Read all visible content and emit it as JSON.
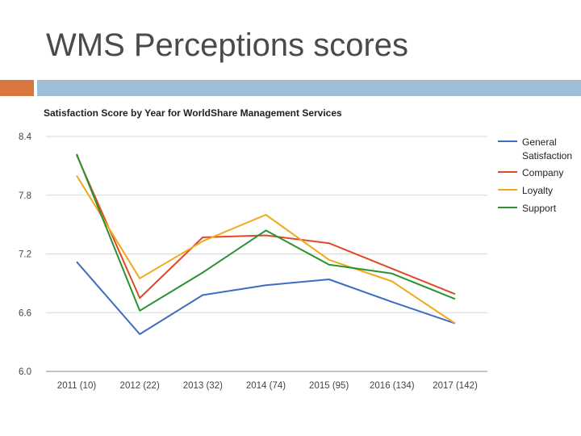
{
  "slide": {
    "title": "WMS Perceptions scores",
    "accent_colors": {
      "left": "#d9753f",
      "bar": "#9fbfd9"
    }
  },
  "chart_data": {
    "type": "line",
    "title": "Satisfaction Score by Year for WorldShare Management Services",
    "xlabel": "",
    "ylabel": "",
    "categories": [
      "2011 (10)",
      "2012 (22)",
      "2013 (32)",
      "2014 (74)",
      "2015 (95)",
      "2016 (134)",
      "2017 (142)"
    ],
    "ylim": [
      6.0,
      8.4
    ],
    "yticks": [
      "6.0",
      "6.6",
      "7.2",
      "7.8",
      "8.4"
    ],
    "grid": true,
    "legend_position": "right",
    "series": [
      {
        "name": "General Satisfaction",
        "color": "#3d6cc0",
        "values": [
          7.12,
          6.38,
          6.78,
          6.88,
          6.94,
          6.71,
          6.49
        ]
      },
      {
        "name": "Company",
        "color": "#dc4a26",
        "values": [
          8.21,
          6.75,
          7.37,
          7.39,
          7.31,
          7.05,
          6.79
        ]
      },
      {
        "name": "Loyalty",
        "color": "#f0a81c",
        "values": [
          8.0,
          6.95,
          7.33,
          7.6,
          7.14,
          6.92,
          6.49
        ]
      },
      {
        "name": "Support",
        "color": "#2a9230",
        "values": [
          8.22,
          6.62,
          7.01,
          7.44,
          7.09,
          7.0,
          6.74
        ]
      }
    ]
  }
}
